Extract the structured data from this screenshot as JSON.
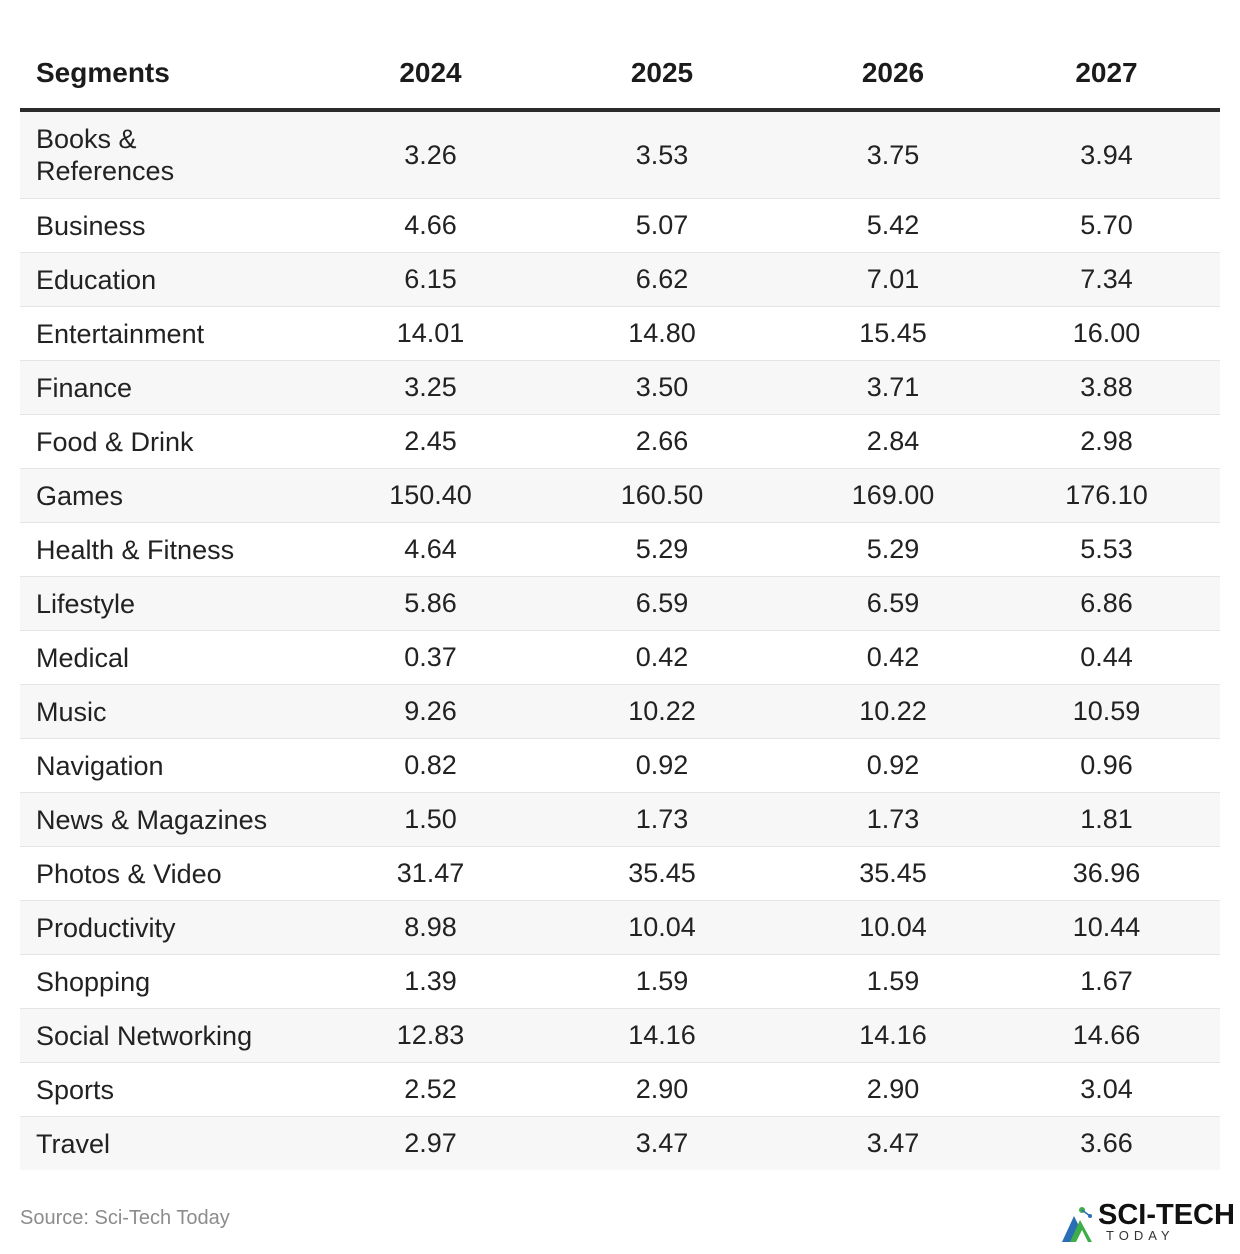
{
  "chart_data": {
    "type": "table",
    "columns": [
      "Segments",
      "2024",
      "2025",
      "2026",
      "2027"
    ],
    "rows": [
      [
        "Books & References",
        "3.26",
        "3.53",
        "3.75",
        "3.94"
      ],
      [
        "Business",
        "4.66",
        "5.07",
        "5.42",
        "5.70"
      ],
      [
        "Education",
        "6.15",
        "6.62",
        "7.01",
        "7.34"
      ],
      [
        "Entertainment",
        "14.01",
        "14.80",
        "15.45",
        "16.00"
      ],
      [
        "Finance",
        "3.25",
        "3.50",
        "3.71",
        "3.88"
      ],
      [
        "Food & Drink",
        "2.45",
        "2.66",
        "2.84",
        "2.98"
      ],
      [
        "Games",
        "150.40",
        "160.50",
        "169.00",
        "176.10"
      ],
      [
        "Health & Fitness",
        "4.64",
        "5.29",
        "5.29",
        "5.53"
      ],
      [
        "Lifestyle",
        "5.86",
        "6.59",
        "6.59",
        "6.86"
      ],
      [
        "Medical",
        "0.37",
        "0.42",
        "0.42",
        "0.44"
      ],
      [
        "Music",
        "9.26",
        "10.22",
        "10.22",
        "10.59"
      ],
      [
        "Navigation",
        "0.82",
        "0.92",
        "0.92",
        "0.96"
      ],
      [
        "News & Magazines",
        "1.50",
        "1.73",
        "1.73",
        "1.81"
      ],
      [
        "Photos & Video",
        "31.47",
        "35.45",
        "35.45",
        "36.96"
      ],
      [
        "Productivity",
        "8.98",
        "10.04",
        "10.04",
        "10.44"
      ],
      [
        "Shopping",
        "1.39",
        "1.59",
        "1.59",
        "1.67"
      ],
      [
        "Social Networking",
        "12.83",
        "14.16",
        "14.16",
        "14.66"
      ],
      [
        "Sports",
        "2.52",
        "2.90",
        "2.90",
        "3.04"
      ],
      [
        "Travel",
        "2.97",
        "3.47",
        "3.47",
        "3.66"
      ]
    ]
  },
  "footer": {
    "source": "Source: Sci-Tech Today",
    "logo_title": "SCI-TECH",
    "logo_subtitle": "TODAY"
  },
  "colors": {
    "stripe": "#f7f7f7",
    "header_rule": "#2b2b2b",
    "logo_green": "#3fae4a",
    "logo_blue": "#2a6fb5"
  }
}
